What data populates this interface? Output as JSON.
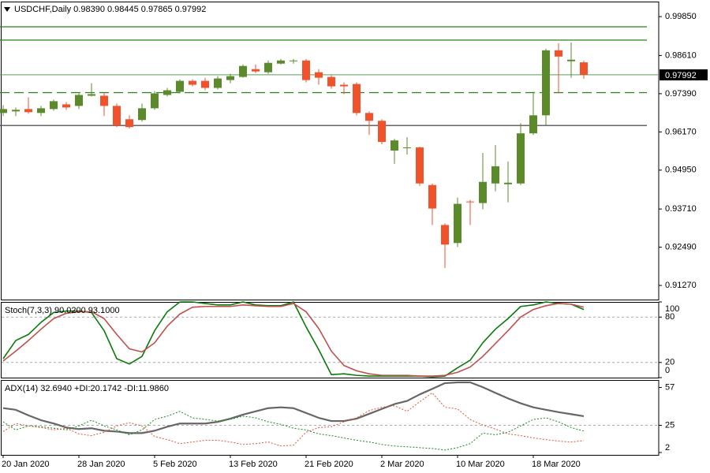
{
  "chart_data": [
    {
      "type": "candlestick",
      "title": "USDCHF,Daily 0.98390 0.98445 0.97865 0.97992",
      "categories": [
        "20 Jan 2020",
        null,
        null,
        null,
        null,
        null,
        "28 Jan 2020",
        null,
        null,
        null,
        null,
        null,
        "5 Feb 2020",
        null,
        null,
        null,
        null,
        null,
        "13 Feb 2020",
        null,
        null,
        null,
        null,
        null,
        "21 Feb 2020",
        null,
        null,
        null,
        null,
        null,
        "2 Mar 2020",
        null,
        null,
        null,
        null,
        null,
        "10 Mar 2020",
        null,
        null,
        null,
        null,
        null,
        "18 Mar 2020",
        null,
        null,
        null,
        null
      ],
      "open": [
        0.96775,
        0.96825,
        0.969,
        0.96775,
        0.969,
        0.9705,
        0.97,
        0.97325,
        0.97325,
        0.97,
        0.96575,
        0.9655,
        0.96925,
        0.9735,
        0.9745,
        0.978,
        0.978,
        0.97575,
        0.97825,
        0.97925,
        0.98175,
        0.98075,
        0.9835,
        0.98425,
        0.9845,
        0.98075,
        0.97925,
        0.97675,
        0.977,
        0.96775,
        0.96525,
        0.95575,
        0.9565,
        0.95675,
        0.94475,
        0.932,
        0.92625,
        0.9395,
        0.939,
        0.94525,
        0.945,
        0.94525,
        0.96125,
        0.967,
        0.98775,
        0.98425,
        0.9839
      ],
      "high": [
        0.97025,
        0.9695,
        0.97275,
        0.97,
        0.972,
        0.97125,
        0.974,
        0.97725,
        0.97425,
        0.97075,
        0.967,
        0.97075,
        0.97475,
        0.97575,
        0.9785,
        0.9785,
        0.979,
        0.9795,
        0.98025,
        0.98325,
        0.98325,
        0.9845,
        0.985,
        0.985,
        0.985,
        0.98175,
        0.97975,
        0.9775,
        0.9775,
        0.96825,
        0.96575,
        0.9595,
        0.96,
        0.957,
        0.94525,
        0.9325,
        0.94075,
        0.94,
        0.955,
        0.9575,
        0.95225,
        0.9645,
        0.9745,
        0.98825,
        0.99,
        0.99025,
        0.98445
      ],
      "low": [
        0.96675,
        0.96675,
        0.9675,
        0.96675,
        0.9685,
        0.96875,
        0.969,
        0.973,
        0.96675,
        0.96325,
        0.96275,
        0.965,
        0.96875,
        0.973,
        0.974,
        0.97625,
        0.975,
        0.97525,
        0.97725,
        0.979,
        0.9805,
        0.98025,
        0.98325,
        0.9835,
        0.9775,
        0.97675,
        0.9755,
        0.97375,
        0.967,
        0.96075,
        0.95775,
        0.9515,
        0.9545,
        0.9445,
        0.932,
        0.91825,
        0.925,
        0.932,
        0.937,
        0.94275,
        0.93925,
        0.94475,
        0.96075,
        0.96375,
        0.974,
        0.979,
        0.97865
      ],
      "close": [
        0.969,
        0.96875,
        0.968,
        0.96925,
        0.9715,
        0.9695,
        0.9735,
        0.97375,
        0.97,
        0.96375,
        0.96325,
        0.96925,
        0.974,
        0.975,
        0.978,
        0.97675,
        0.97575,
        0.97875,
        0.9795,
        0.98275,
        0.981,
        0.98375,
        0.9845,
        0.9845,
        0.97825,
        0.979,
        0.97625,
        0.97625,
        0.96775,
        0.96525,
        0.9585,
        0.959,
        0.95675,
        0.94525,
        0.93725,
        0.92575,
        0.93875,
        0.93925,
        0.94575,
        0.95075,
        0.9455,
        0.96125,
        0.967,
        0.98775,
        0.98575,
        0.98475,
        0.97992
      ],
      "up_color": "#5b8a2b",
      "down_color": "#f0522b",
      "ylim": [
        0.9082,
        1.0033
      ],
      "yticks": [
        {
          "value": 0.9985,
          "label": "0.99850"
        },
        {
          "value": 0.9861,
          "label": "0.98610"
        },
        {
          "value": 0.9739,
          "label": "0.97390"
        },
        {
          "value": 0.9617,
          "label": "0.96170"
        },
        {
          "value": 0.9495,
          "label": "0.94950"
        },
        {
          "value": 0.9371,
          "label": "0.93710"
        },
        {
          "value": 0.9249,
          "label": "0.92490"
        },
        {
          "value": 0.9127,
          "label": "0.91270"
        }
      ],
      "last_price": {
        "value": 0.97992,
        "label": "0.97992",
        "color": "#5e9a5e"
      },
      "levels": [
        {
          "value": 0.99525,
          "color": "#2e7d1e",
          "dash": false
        },
        {
          "value": 0.991,
          "color": "#2e7d1e",
          "dash": false
        },
        {
          "value": 0.97425,
          "color": "#2e7d1e",
          "dash": true
        },
        {
          "value": 0.96375,
          "color": "#555555",
          "dash": false
        }
      ]
    },
    {
      "type": "line",
      "title": "Stoch(7,3,3) 90.0200 93.1000",
      "ylim": [
        0,
        100
      ],
      "yticks": [
        0,
        20,
        80,
        100
      ],
      "levels": [
        20,
        80
      ],
      "series": [
        {
          "color": "#0b7a0b",
          "width": 1.6,
          "dash": false,
          "values": [
            25,
            49,
            57,
            73,
            86,
            88,
            88,
            86,
            62,
            25,
            18,
            28,
            62,
            87,
            100,
            100,
            98,
            96,
            96,
            100,
            96,
            95,
            95,
            100,
            67,
            37,
            4,
            5,
            3,
            2,
            2,
            2,
            2,
            2,
            1,
            2,
            13,
            23,
            46,
            64,
            78,
            94,
            96,
            100,
            98,
            97,
            90.02
          ]
        },
        {
          "color": "#c0504d",
          "width": 1.6,
          "dash": false,
          "values": [
            22,
            35,
            49,
            64,
            78,
            85,
            87,
            87,
            78,
            57,
            38,
            34,
            46,
            68,
            84,
            93,
            94,
            94,
            94,
            96,
            95,
            94,
            94,
            98,
            87,
            65,
            35,
            16,
            9,
            5,
            3,
            3,
            3,
            2,
            2,
            3,
            7,
            14,
            28,
            45,
            62,
            80,
            90,
            95,
            98,
            97,
            93.1
          ]
        }
      ]
    },
    {
      "type": "line",
      "title": "ADX(14) 32.6940 +DI:20.1742 -DI:11.9860",
      "ylim": [
        0,
        63.3
      ],
      "yticks": [
        2,
        25,
        57
      ],
      "levels": [
        25
      ],
      "series": [
        {
          "color": "#666666",
          "width": 2.2,
          "dash": false,
          "values": [
            39.5,
            38.1,
            33.4,
            29.3,
            26.5,
            23.1,
            21.8,
            22.5,
            20.4,
            19.7,
            18.4,
            18.4,
            20.4,
            23.8,
            26.5,
            26.5,
            26.5,
            27.9,
            30.6,
            34.0,
            36.8,
            39.5,
            40.2,
            39.5,
            35.4,
            31.3,
            28.6,
            28.6,
            30.6,
            34.7,
            38.8,
            42.9,
            45.6,
            51.1,
            55.8,
            60.6,
            61.3,
            61.3,
            57.2,
            52.4,
            47.7,
            43.6,
            40.2,
            38.1,
            36.1,
            34.4,
            32.694
          ]
        },
        {
          "color": "#1a8a1a",
          "width": 1,
          "dash": true,
          "values": [
            27.9,
            21.1,
            24.5,
            23.8,
            22.5,
            21.1,
            24.5,
            29.3,
            24.5,
            21.1,
            17.0,
            21.1,
            29.9,
            32.7,
            36.8,
            31.3,
            30.0,
            28.6,
            30.0,
            32.7,
            31.3,
            27.9,
            25.9,
            22.5,
            21.1,
            17.7,
            16.3,
            14.3,
            12.3,
            10.9,
            8.8,
            7.5,
            6.8,
            6.1,
            5.4,
            4.1,
            6.1,
            9.5,
            18.4,
            17.0,
            19.1,
            24.5,
            29.9,
            31.3,
            27.9,
            23.1,
            20.1742
          ]
        },
        {
          "color": "#e0553a",
          "width": 1,
          "dash": true,
          "values": [
            19.7,
            26.5,
            24.5,
            23.1,
            21.1,
            22.5,
            17.7,
            16.3,
            19.1,
            24.5,
            27.2,
            24.5,
            15.6,
            12.9,
            9.5,
            10.9,
            12.3,
            12.3,
            10.9,
            8.8,
            9.5,
            10.9,
            7.5,
            8.2,
            19.1,
            23.1,
            23.8,
            27.9,
            31.3,
            37.4,
            40.2,
            41.5,
            36.8,
            44.9,
            52.4,
            40.2,
            38.8,
            29.9,
            25.2,
            21.8,
            17.7,
            16.3,
            14.3,
            12.9,
            11.6,
            10.9,
            11.986
          ]
        }
      ]
    }
  ]
}
